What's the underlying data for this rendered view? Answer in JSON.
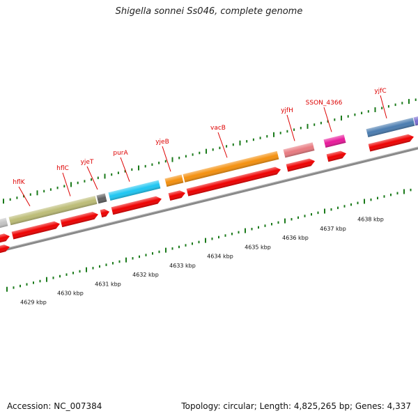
{
  "title": "Shigella sonnei Ss046, complete genome",
  "footer": {
    "accession": "Accession: NC_007384",
    "summary": "Topology: circular; Length: 4,825,265 bp; Genes: 4,337"
  },
  "genes": [
    {
      "name": "hflK",
      "color": "#bcbc76"
    },
    {
      "name": "hflC",
      "color": "#bcbc76"
    },
    {
      "name": "yjeT",
      "color": "#606060"
    },
    {
      "name": "purA",
      "color": "#1ec6f2"
    },
    {
      "name": "yjeB",
      "color": "#f4900e"
    },
    {
      "name": "vacB",
      "color": "#f4900e"
    },
    {
      "name": "yjfH",
      "color": "#e87a80"
    },
    {
      "name": "SSON_4366",
      "color": "#e8189a"
    },
    {
      "name": "yjfC",
      "color": "#4a7cb0"
    }
  ],
  "kbp_labels": [
    "4629 kbp",
    "4630 kbp",
    "4631 kbp",
    "4632 kbp",
    "4633 kbp",
    "4634 kbp",
    "4635 kbp",
    "4636 kbp",
    "4637 kbp",
    "4638 kbp"
  ],
  "colors": {
    "cds": "#ee0000",
    "label_red": "#dd0000",
    "tick_green": "#1a7a1a",
    "backbone": "#8a8a8a"
  }
}
